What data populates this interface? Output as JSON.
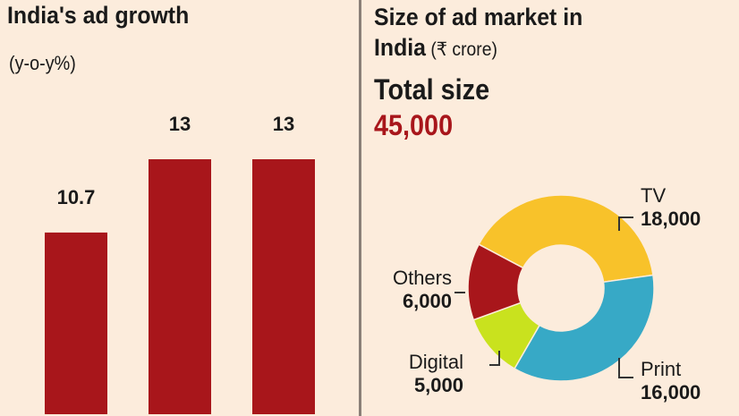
{
  "chart_data": [
    {
      "type": "bar",
      "title": "India's ad growth",
      "subtitle": "(y-o-y%)",
      "values": [
        10.7,
        13,
        13
      ],
      "data_labels": [
        "10.7",
        "13",
        "13"
      ],
      "color": "#a8161b",
      "grid": false
    },
    {
      "type": "pie",
      "style": "donut",
      "title": "Size of ad market in India",
      "unit": "(₹ crore)",
      "total_label": "Total size",
      "total_value": "45,000",
      "slices": [
        {
          "name": "TV",
          "value": 18000,
          "label": "18,000",
          "color": "#f8c22a"
        },
        {
          "name": "Print",
          "value": 16000,
          "label": "16,000",
          "color": "#37a9c6"
        },
        {
          "name": "Digital",
          "value": 5000,
          "label": "5,000",
          "color": "#c9e21e"
        },
        {
          "name": "Others",
          "value": 6000,
          "label": "6,000",
          "color": "#a8161b"
        }
      ]
    }
  ]
}
